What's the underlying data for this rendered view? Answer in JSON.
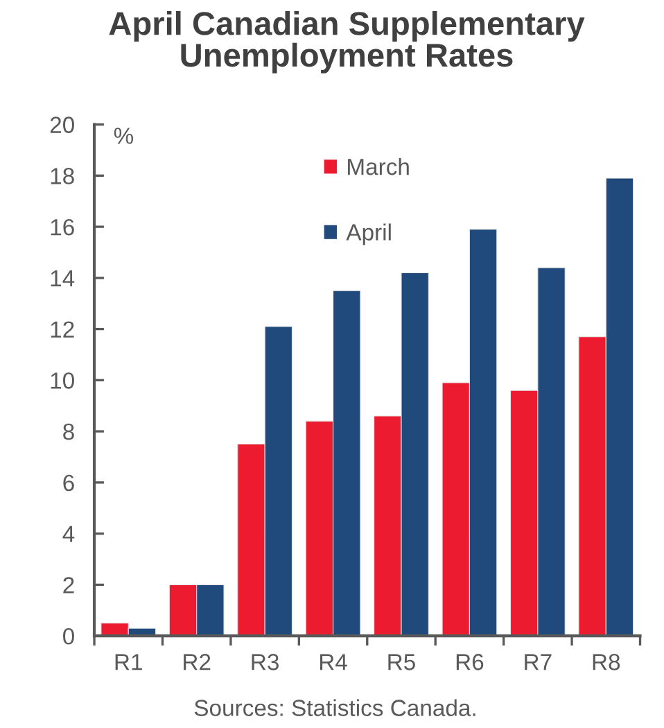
{
  "chart_data": {
    "type": "bar",
    "title": "April Canadian Supplementary\nUnemployment Rates",
    "ylabel": "%",
    "categories": [
      "R1",
      "R2",
      "R3",
      "R4",
      "R5",
      "R6",
      "R7",
      "R8"
    ],
    "series": [
      {
        "name": "March",
        "color": "#ed1b2f",
        "values": [
          0.5,
          2.0,
          7.5,
          8.4,
          8.6,
          9.9,
          9.6,
          11.7
        ]
      },
      {
        "name": "April",
        "color": "#214a7c",
        "values": [
          0.3,
          2.0,
          12.1,
          13.5,
          14.2,
          15.9,
          14.4,
          17.9
        ]
      }
    ],
    "ylim": [
      0,
      20
    ],
    "yticks": [
      0,
      2,
      4,
      6,
      8,
      10,
      12,
      14,
      16,
      18,
      20
    ],
    "grid": false,
    "legend": "top",
    "annotations": [
      "Sources: Statistics Canada."
    ]
  }
}
